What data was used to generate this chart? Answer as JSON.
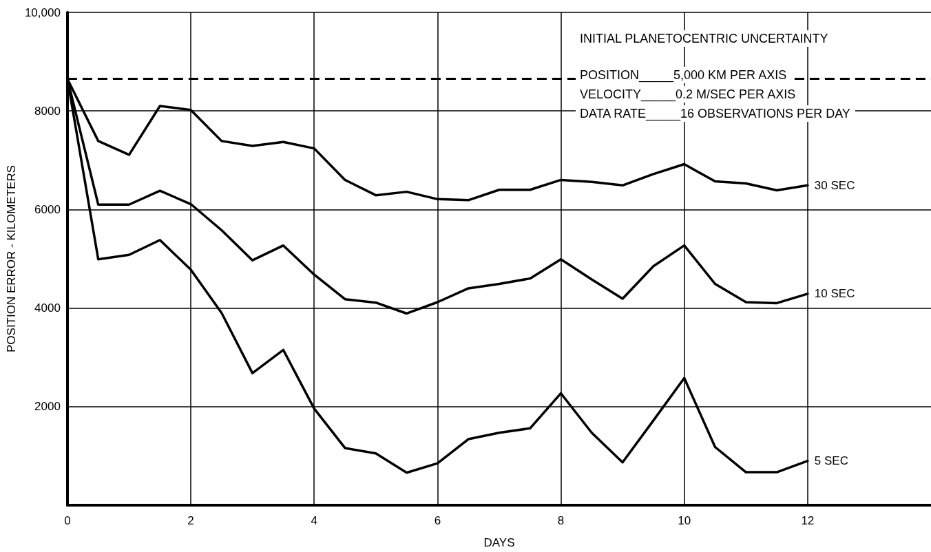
{
  "chart_data": {
    "type": "line",
    "xlabel": "DAYS",
    "ylabel": "POSITION ERROR - KILOMETERS",
    "x": [
      0,
      0.5,
      1,
      1.5,
      2,
      2.5,
      3,
      3.5,
      4,
      4.5,
      5,
      5.5,
      6,
      6.5,
      7,
      7.5,
      8,
      8.5,
      9,
      9.5,
      10,
      10.5,
      11,
      11.5,
      12
    ],
    "series": [
      {
        "name": "30 SEC",
        "color": "#000000",
        "values": [
          8650,
          7390,
          7110,
          8100,
          8020,
          7390,
          7290,
          7370,
          7240,
          6600,
          6290,
          6360,
          6210,
          6190,
          6400,
          6400,
          6600,
          6560,
          6490,
          6720,
          6920,
          6570,
          6530,
          6390,
          6490
        ]
      },
      {
        "name": "10 SEC",
        "color": "#000000",
        "values": [
          8650,
          6100,
          6100,
          6380,
          6110,
          5580,
          4970,
          5270,
          4680,
          4180,
          4110,
          3890,
          4120,
          4400,
          4490,
          4600,
          4990,
          4580,
          4190,
          4850,
          5270,
          4490,
          4120,
          4100,
          4290
        ]
      },
      {
        "name": "5 SEC",
        "color": "#000000",
        "values": [
          8650,
          4990,
          5080,
          5380,
          4780,
          3900,
          2680,
          3150,
          1960,
          1160,
          1050,
          660,
          850,
          1340,
          1470,
          1560,
          2270,
          1470,
          870,
          1720,
          2580,
          1180,
          670,
          670,
          900
        ]
      }
    ],
    "xlim": [
      0,
      14
    ],
    "xticks": [
      0,
      2,
      4,
      6,
      8,
      10,
      12
    ],
    "ylim": [
      0,
      10000
    ],
    "yticks": [
      2000,
      4000,
      6000,
      8000,
      {
        "value": 10000,
        "label": "10,000"
      }
    ],
    "ref_lines": [
      {
        "axis": "y",
        "value": 8650,
        "color": "#000000",
        "line_style": "dashed"
      }
    ],
    "annotations": [
      "INITIAL PLANETOCENTRIC UNCERTAINTY",
      "POSITION_____5,000 KM PER AXIS",
      "VELOCITY_____0.2 M/SEC PER AXIS",
      "DATA RATE_____16 OBSERVATIONS PER DAY"
    ],
    "grid": true,
    "marker": "none",
    "line_style": "solid",
    "legend": false
  }
}
